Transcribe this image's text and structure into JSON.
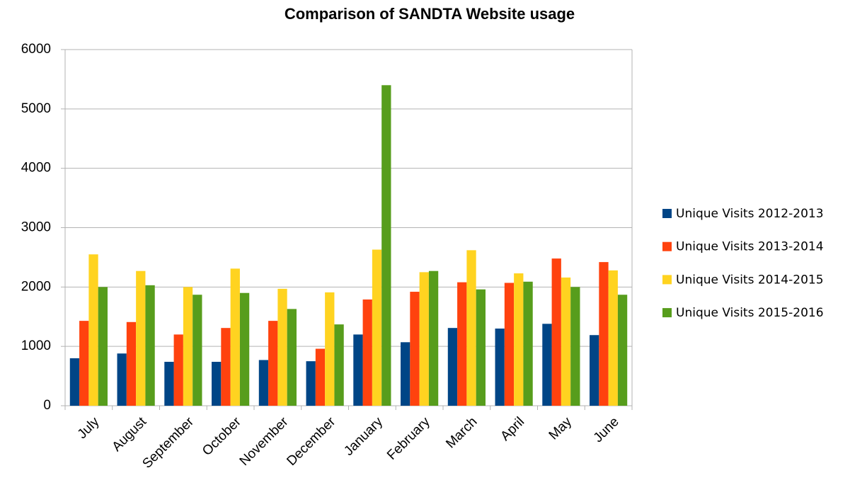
{
  "chart_data": {
    "type": "bar",
    "title": "Comparison of SANDTA Website usage",
    "categories": [
      "July",
      "August",
      "September",
      "October",
      "November",
      "December",
      "January",
      "February",
      "March",
      "April",
      "May",
      "June"
    ],
    "series": [
      {
        "name": "Unique Visits 2012-2013",
        "color": "#004586",
        "values": [
          800,
          880,
          740,
          740,
          770,
          750,
          1200,
          1070,
          1310,
          1300,
          1380,
          1190
        ]
      },
      {
        "name": "Unique Visits 2013-2014",
        "color": "#ff420e",
        "values": [
          1430,
          1410,
          1200,
          1310,
          1430,
          960,
          1790,
          1920,
          2080,
          2070,
          2480,
          2420
        ]
      },
      {
        "name": "Unique Visits 2014-2015",
        "color": "#ffd320",
        "values": [
          2550,
          2270,
          2000,
          2310,
          1970,
          1910,
          2630,
          2250,
          2620,
          2230,
          2160,
          2280
        ]
      },
      {
        "name": "Unique Visits 2015-2016",
        "color": "#579d1c",
        "values": [
          2000,
          2030,
          1870,
          1900,
          1630,
          1370,
          5400,
          2270,
          1960,
          2090,
          2000,
          1870
        ]
      }
    ],
    "ylim": [
      0,
      6000
    ],
    "yticks": [
      0,
      1000,
      2000,
      3000,
      4000,
      5000,
      6000
    ],
    "grid": true,
    "legend": "right"
  }
}
